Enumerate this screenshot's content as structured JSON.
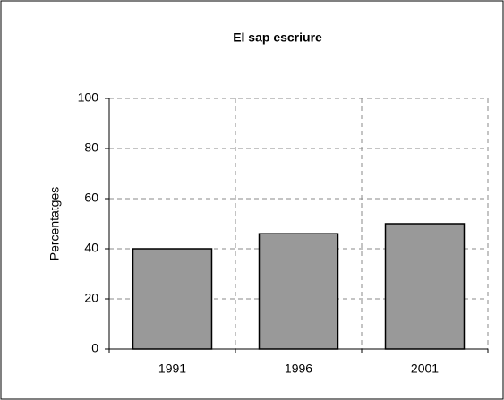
{
  "chart_data": {
    "type": "bar",
    "title": "El sap escriure",
    "y_label": "Percentatges",
    "categories": [
      "1991",
      "1996",
      "2001"
    ],
    "values": [
      40,
      46,
      50
    ],
    "color": "#999999",
    "ylim": [
      0,
      100
    ],
    "yticks": [
      0,
      20,
      40,
      60,
      80,
      100
    ],
    "grid": true
  }
}
